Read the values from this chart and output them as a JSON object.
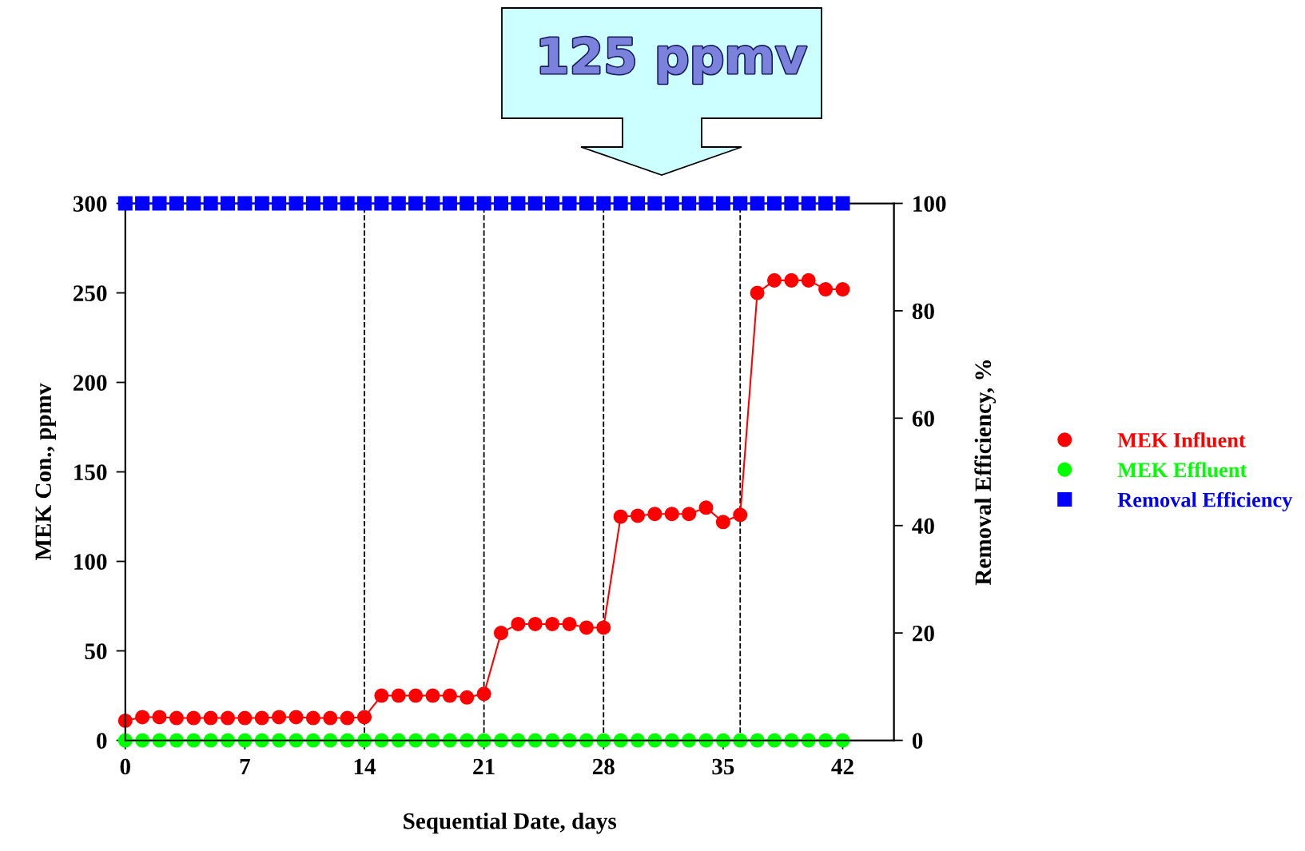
{
  "chart_data": {
    "type": "line",
    "xlabel": "Sequential Date, days",
    "ylabel": "MEK Con., ppmv",
    "y2label": "Removal Efficiency, %",
    "x": [
      0,
      1,
      2,
      3,
      4,
      5,
      6,
      7,
      8,
      9,
      10,
      11,
      12,
      13,
      14,
      15,
      16,
      17,
      18,
      19,
      20,
      21,
      22,
      23,
      24,
      25,
      26,
      27,
      28,
      29,
      30,
      31,
      32,
      33,
      34,
      35,
      36,
      37,
      38,
      39,
      40,
      41,
      42
    ],
    "series": [
      {
        "name": "MEK Influent",
        "color": "#ff0000",
        "marker": "circle",
        "line_style": "solid",
        "values": [
          11,
          13,
          13,
          12.5,
          12.5,
          12.5,
          12.5,
          12.5,
          12.5,
          13,
          13,
          12.5,
          12.5,
          12.5,
          13,
          25,
          25,
          25,
          25,
          25,
          24,
          26,
          60,
          65,
          65,
          65,
          65,
          63,
          63,
          125,
          125.5,
          126.5,
          126.5,
          126.5,
          130,
          122,
          126,
          250,
          257,
          257,
          257,
          252,
          252
        ]
      },
      {
        "name": "MEK Effluent",
        "color": "#00ff00",
        "marker": "circle",
        "line_style": "solid",
        "values": [
          0,
          0,
          0,
          0,
          0,
          0,
          0,
          0,
          0,
          0,
          0,
          0,
          0,
          0,
          0,
          0,
          0,
          0,
          0,
          0,
          0,
          0,
          0,
          0,
          0,
          0,
          0,
          0,
          0,
          0,
          0,
          0,
          0,
          0,
          0,
          0,
          0,
          0,
          0,
          0,
          0,
          0,
          0
        ]
      },
      {
        "name": "Removal Efficiency",
        "color": "#0000ff",
        "marker": "square",
        "line_style": "solid",
        "axis": "y2",
        "values": [
          100,
          100,
          100,
          100,
          100,
          100,
          100,
          100,
          100,
          100,
          100,
          100,
          100,
          100,
          100,
          100,
          100,
          100,
          100,
          100,
          100,
          100,
          100,
          100,
          100,
          100,
          100,
          100,
          100,
          100,
          100,
          100,
          100,
          100,
          100,
          100,
          100,
          100,
          100,
          100,
          100,
          100,
          100
        ]
      }
    ],
    "xlim": [
      0,
      45
    ],
    "xticks": [
      0,
      7,
      14,
      21,
      28,
      35,
      42
    ],
    "ylim": [
      0,
      300
    ],
    "yticks": [
      0,
      50,
      100,
      150,
      200,
      250,
      300
    ],
    "y2lim": [
      0,
      100
    ],
    "y2ticks": [
      0,
      20,
      40,
      60,
      80,
      100
    ],
    "ref_lines": [
      {
        "axis": "x",
        "value": 14,
        "color": "#000000",
        "line_style": "dashed"
      },
      {
        "axis": "x",
        "value": 21,
        "color": "#000000",
        "line_style": "dashed"
      },
      {
        "axis": "x",
        "value": 28,
        "color": "#000000",
        "line_style": "dashed"
      },
      {
        "axis": "x",
        "value": 36,
        "color": "#000000",
        "line_style": "dashed"
      }
    ],
    "annotations": [
      "125 ppmv"
    ],
    "grid": false,
    "legend": "right"
  }
}
